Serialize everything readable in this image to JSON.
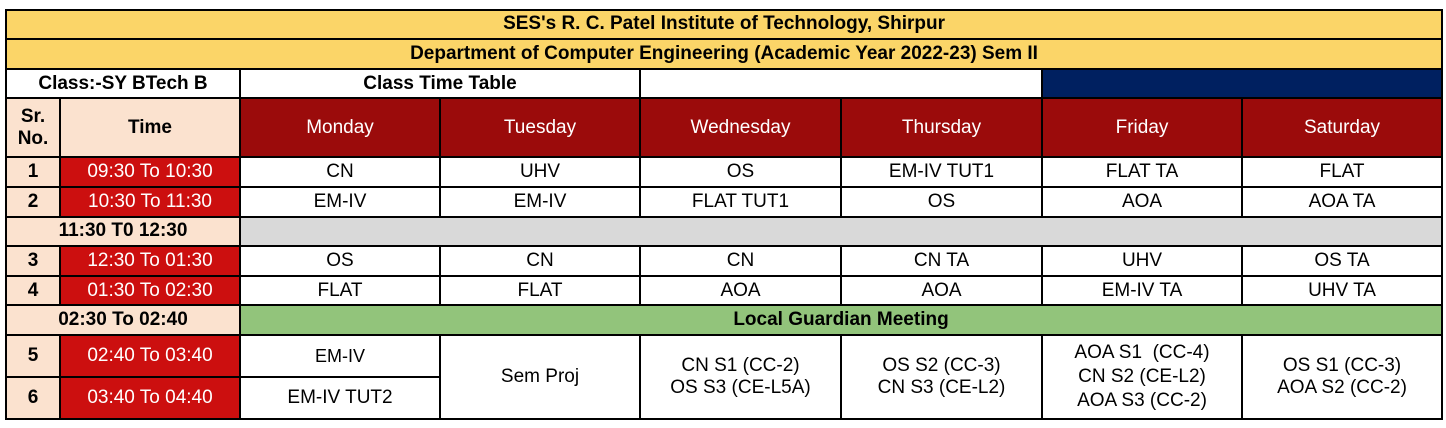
{
  "header": {
    "institute": "SES's R. C. Patel Institute of Technology, Shirpur",
    "department": "Department of Computer Engineering (Academic Year 2022-23) Sem II",
    "class_label": "Class:-SY BTech B",
    "table_title": "Class Time Table"
  },
  "columns": {
    "sr_no_line1": "Sr.",
    "sr_no_line2": "No.",
    "time": "Time",
    "days": [
      "Monday",
      "Tuesday",
      "Wednesday",
      "Thursday",
      "Friday",
      "Saturday"
    ]
  },
  "rows": [
    {
      "sr": "1",
      "time": "09:30 To 10:30",
      "cells": [
        "CN",
        "UHV",
        "OS",
        "EM-IV TUT1",
        "FLAT TA",
        "FLAT"
      ]
    },
    {
      "sr": "2",
      "time": "10:30 To 11:30",
      "cells": [
        "EM-IV",
        "EM-IV",
        "FLAT TUT1",
        "OS",
        "AOA",
        "AOA TA"
      ]
    },
    {
      "sr": "3",
      "time": "12:30 To 01:30",
      "cells": [
        "OS",
        "CN",
        "CN",
        "CN TA",
        "UHV",
        "OS TA"
      ]
    },
    {
      "sr": "4",
      "time": "01:30 To 02:30",
      "cells": [
        "FLAT",
        "FLAT",
        "AOA",
        "AOA",
        "EM-IV TA",
        "UHV TA"
      ]
    }
  ],
  "break1": {
    "time": "11:30 T0 12:30"
  },
  "break2": {
    "time": "02:30 To 02:40",
    "label": "Local Guardian Meeting"
  },
  "afternoon": {
    "row5": {
      "sr": "5",
      "time": "02:40 To 03:40",
      "monday": "EM-IV"
    },
    "row6": {
      "sr": "6",
      "time": "03:40 To 04:40",
      "monday": "EM-IV TUT2"
    },
    "tuesday": "Sem Proj",
    "wednesday": [
      "CN S1 (CC-2)",
      "OS S3 (CE-L5A)"
    ],
    "thursday": [
      "OS S2 (CC-3)",
      "CN S3 (CE-L2)"
    ],
    "friday": [
      "AOA S1  (CC-4)",
      "CN S2 (CE-L2)",
      "AOA S3 (CC-2)"
    ],
    "saturday": [
      "OS S1 (CC-3)",
      "AOA S2 (CC-2)"
    ]
  }
}
